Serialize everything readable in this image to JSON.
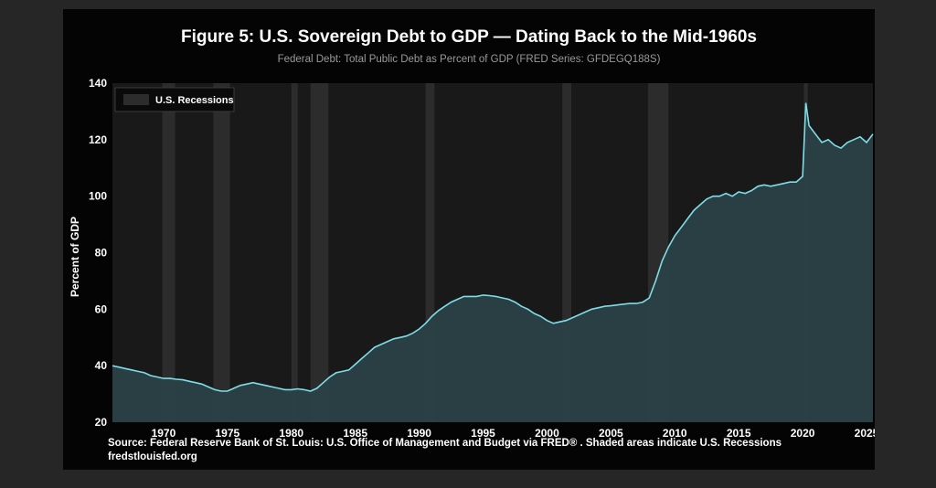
{
  "header": {
    "title_lead": "Figure 5:",
    "title_rest": "U.S. Sovereign Debt to GDP — Dating Back to the Mid-1960s",
    "subtitle": "Federal Debt: Total Public Debt as Percent of GDP (FRED Series:  GFDEGQ188S)"
  },
  "footer": {
    "source": "Source: Federal Reserve Bank of St. Louis: U.S. Office of Management and Budget via FRED® . Shaded areas indicate U.S. Recessions",
    "url": "fredstlouisfed.org"
  },
  "colors": {
    "page_bg": "#262626",
    "card_bg": "#040404",
    "plot_bg": "#191919",
    "recession": "#2c2c2c",
    "line": "#7fdde8",
    "area": "#2a4247"
  },
  "chart_data": {
    "type": "area",
    "title": "U.S. Sovereign Debt to GDP — Dating Back to the Mid-1960s",
    "ylabel": "Percent of GDP",
    "xlabel": "",
    "xlim": [
      1966,
      2025.5
    ],
    "ylim": [
      20,
      140
    ],
    "x_ticks": [
      1970,
      1975,
      1980,
      1985,
      1990,
      1995,
      2000,
      2005,
      2010,
      2015,
      2020,
      2025
    ],
    "y_ticks": [
      20,
      40,
      60,
      80,
      100,
      120,
      140
    ],
    "legend": {
      "label": "U.S. Recessions",
      "position": "top-left"
    },
    "grid": false,
    "recessions": [
      [
        1969.9,
        1970.9
      ],
      [
        1973.9,
        1975.2
      ],
      [
        1980.0,
        1980.5
      ],
      [
        1981.5,
        1982.9
      ],
      [
        1990.5,
        1991.2
      ],
      [
        2001.2,
        2001.9
      ],
      [
        2007.9,
        2009.5
      ],
      [
        2020.1,
        2020.4
      ]
    ],
    "series": [
      {
        "x": [
          1966.0,
          1966.5,
          1967.0,
          1967.5,
          1968.0,
          1968.5,
          1969.0,
          1969.5,
          1970.0,
          1970.5,
          1971.0,
          1971.5,
          1972.0,
          1972.5,
          1973.0,
          1973.5,
          1974.0,
          1974.5,
          1975.0,
          1975.5,
          1976.0,
          1976.5,
          1977.0,
          1977.5,
          1978.0,
          1978.5,
          1979.0,
          1979.5,
          1980.0,
          1980.5,
          1981.0,
          1981.5,
          1982.0,
          1982.5,
          1983.0,
          1983.5,
          1984.0,
          1984.5,
          1985.0,
          1985.5,
          1986.0,
          1986.5,
          1987.0,
          1987.5,
          1988.0,
          1988.5,
          1989.0,
          1989.5,
          1990.0,
          1990.5,
          1991.0,
          1991.5,
          1992.0,
          1992.5,
          1993.0,
          1993.5,
          1994.0,
          1994.5,
          1995.0,
          1995.5,
          1996.0,
          1996.5,
          1997.0,
          1997.5,
          1998.0,
          1998.5,
          1999.0,
          1999.5,
          2000.0,
          2000.5,
          2001.0,
          2001.5,
          2002.0,
          2002.5,
          2003.0,
          2003.5,
          2004.0,
          2004.5,
          2005.0,
          2005.5,
          2006.0,
          2006.5,
          2007.0,
          2007.5,
          2008.0,
          2008.5,
          2009.0,
          2009.5,
          2010.0,
          2010.5,
          2011.0,
          2011.5,
          2012.0,
          2012.5,
          2013.0,
          2013.5,
          2014.0,
          2014.5,
          2015.0,
          2015.5,
          2016.0,
          2016.5,
          2017.0,
          2017.5,
          2018.0,
          2018.5,
          2019.0,
          2019.5,
          2020.0,
          2020.25,
          2020.5,
          2021.0,
          2021.5,
          2022.0,
          2022.5,
          2023.0,
          2023.5,
          2024.0,
          2024.5,
          2025.0,
          2025.5
        ],
        "values": [
          40,
          39.5,
          39,
          38.5,
          38,
          37.5,
          36.5,
          36,
          35.5,
          35.5,
          35.2,
          35,
          34.5,
          34,
          33.5,
          32.5,
          31.5,
          31,
          31,
          32,
          33,
          33.5,
          34,
          33.5,
          33,
          32.5,
          32,
          31.5,
          31.5,
          31.8,
          31.5,
          31,
          32,
          34,
          36,
          37.5,
          38,
          38.5,
          40.5,
          42.5,
          44.5,
          46.5,
          47.5,
          48.5,
          49.5,
          50,
          50.5,
          51.5,
          53,
          55,
          57.5,
          59.5,
          61,
          62.5,
          63.5,
          64.5,
          64.5,
          64.5,
          65,
          64.8,
          64.5,
          64,
          63.5,
          62.5,
          61,
          60,
          58.5,
          57.5,
          56,
          55,
          55.5,
          56,
          57,
          58,
          59,
          60,
          60.5,
          61,
          61.2,
          61.5,
          61.8,
          62,
          62,
          62.5,
          64,
          70,
          77,
          82,
          86,
          89,
          92,
          95,
          97,
          99,
          100,
          100,
          101,
          100,
          101.5,
          101,
          102,
          103.5,
          104,
          103.5,
          104,
          104.5,
          105,
          105,
          107,
          133,
          125,
          122,
          119,
          120,
          118,
          117,
          119,
          120,
          121,
          119,
          122
        ]
      }
    ]
  }
}
